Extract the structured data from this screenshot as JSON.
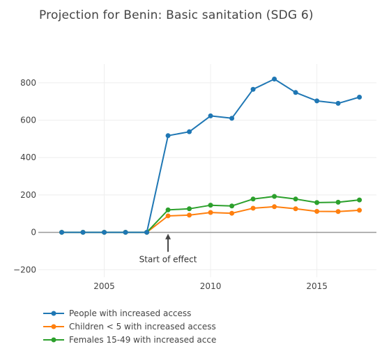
{
  "chart_data": {
    "type": "line",
    "title": "Projection for Benin: Basic sanitation (SDG 6)",
    "xlabel": "",
    "ylabel": "",
    "xlim": [
      2001.9,
      2017.8
    ],
    "ylim": [
      -240,
      900
    ],
    "x_ticks": [
      "2005",
      "2010",
      "2015"
    ],
    "y_ticks": [
      "800",
      "600",
      "400",
      "200",
      "0",
      "−200"
    ],
    "grid": true,
    "legend_position": "bottom-left",
    "x": [
      2003,
      2004,
      2005,
      2006,
      2007,
      2008,
      2009,
      2010,
      2011,
      2012,
      2013,
      2014,
      2015,
      2016,
      2017
    ],
    "series": [
      {
        "name": "People with increased access",
        "color": "#1f77b4",
        "values": [
          0,
          0,
          0,
          0,
          0,
          517,
          538,
          623,
          610,
          765,
          820,
          748,
          703,
          690,
          723
        ]
      },
      {
        "name": "Children < 5 with increased access",
        "color": "#ff7f0e",
        "values": [
          0,
          0,
          0,
          0,
          0,
          88,
          92,
          106,
          102,
          129,
          137,
          126,
          112,
          111,
          118
        ]
      },
      {
        "name": "Females 15-49 with increased acce",
        "color": "#2ca02c",
        "values": [
          0,
          0,
          0,
          0,
          0,
          120,
          126,
          145,
          141,
          178,
          192,
          178,
          159,
          161,
          173
        ]
      }
    ],
    "annotation": {
      "text": "Start of effect",
      "x": 2008
    }
  }
}
